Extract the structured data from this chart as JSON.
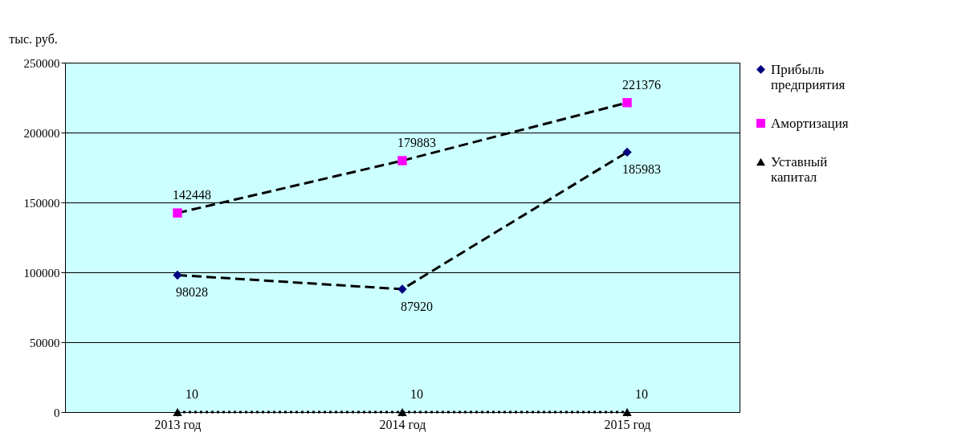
{
  "chart_data": {
    "type": "line",
    "ylabel": "тыс. руб.",
    "categories": [
      "2013 год",
      "2014 год",
      "2015 год"
    ],
    "series": [
      {
        "name": "Прибыль предприятия",
        "color": "#000080",
        "marker": "diamond",
        "line_style": "dashed",
        "values": [
          98028,
          87920,
          185983
        ]
      },
      {
        "name": "Амортизация",
        "color": "#ff00ff",
        "marker": "square",
        "line_style": "dashed",
        "values": [
          142448,
          179883,
          221376
        ]
      },
      {
        "name": "Уставный капитал",
        "color": "#000000",
        "marker": "triangle",
        "line_style": "dotted",
        "values": [
          10,
          10,
          10
        ]
      }
    ],
    "ylim": [
      0,
      250000
    ],
    "yticks": [
      0,
      50000,
      100000,
      150000,
      200000,
      250000
    ],
    "grid": "y",
    "legend": "right",
    "data_labels": true
  }
}
